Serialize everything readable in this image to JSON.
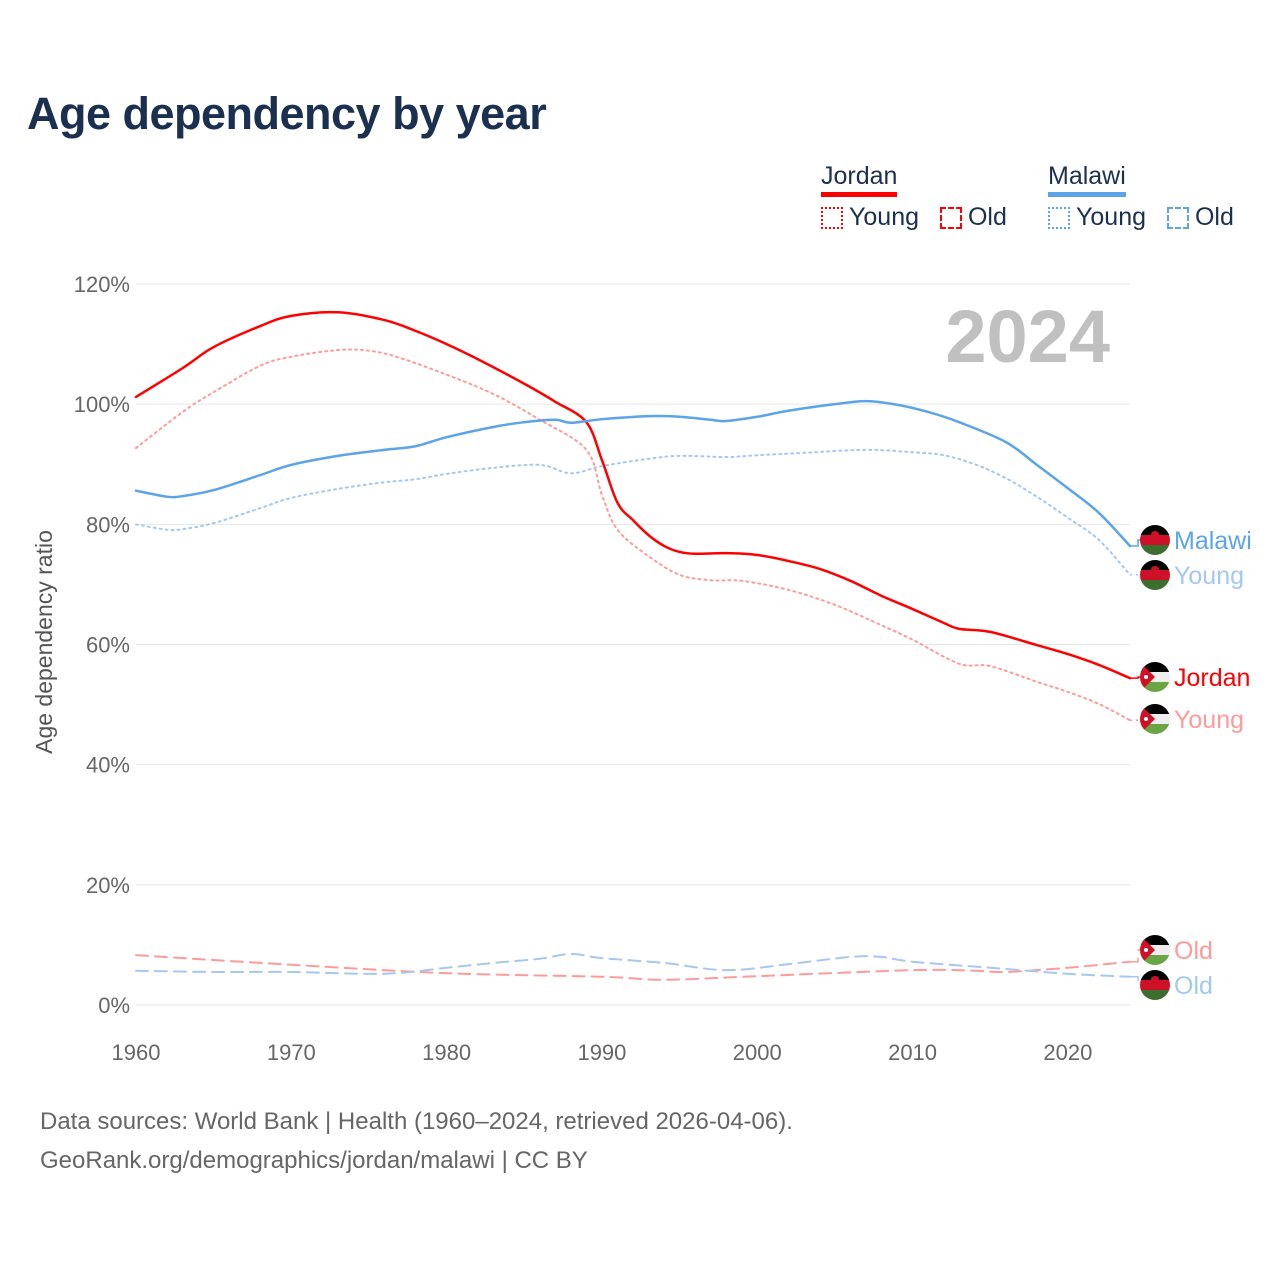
{
  "title": "Age dependency by year",
  "legend": {
    "groups": [
      {
        "name": "Jordan",
        "color": "#ff0000",
        "young_label": "Young",
        "old_label": "Old"
      },
      {
        "name": "Malawi",
        "color": "#5ba4ea",
        "young_label": "Young",
        "old_label": "Old"
      }
    ]
  },
  "footer": {
    "line1": "Data sources: World Bank | Health (1960–2024, retrieved 2026-04-06).",
    "line2": "GeoRank.org/demographics/jordan/malawi | CC BY"
  },
  "chart_data": {
    "type": "line",
    "title": "Age dependency by year",
    "year_label": "2024",
    "xlabel": "",
    "ylabel": "Age dependency ratio",
    "xlim": [
      1960,
      2024
    ],
    "ylim": [
      0,
      120
    ],
    "x_ticks": [
      "1960",
      "1970",
      "1980",
      "1990",
      "2000",
      "2010",
      "2020"
    ],
    "y_ticks": [
      "0%",
      "20%",
      "40%",
      "60%",
      "80%",
      "100%",
      "120%"
    ],
    "grid": true,
    "series": [
      {
        "name": "Jordan",
        "label": "Jordan",
        "country": "jordan",
        "style": "solid",
        "color": "#ff0000",
        "x": [
          1960,
          1963,
          1965,
          1968,
          1970,
          1973,
          1976,
          1978,
          1980,
          1982,
          1985,
          1987,
          1989,
          1990,
          1991,
          1992,
          1993,
          1994,
          1995,
          1996,
          1998,
          2000,
          2002,
          2004,
          2006,
          2008,
          2010,
          2012,
          2013,
          2015,
          2018,
          2020,
          2022,
          2024
        ],
        "values": [
          101.2,
          106,
          109.5,
          113,
          114.7,
          115.3,
          114,
          112.2,
          110,
          107.5,
          103.4,
          100.4,
          97,
          90.7,
          83.6,
          80.7,
          78.2,
          76.4,
          75.4,
          75.1,
          75.2,
          74.9,
          73.9,
          72.6,
          70.6,
          68.1,
          65.9,
          63.6,
          62.6,
          62.1,
          59.9,
          58.4,
          56.6,
          54.4
        ]
      },
      {
        "name": "Jordan Young",
        "label": "Young",
        "country": "jordan",
        "style": "dotted",
        "color": "#ff9a9a",
        "x": [
          1960,
          1963,
          1965,
          1968,
          1970,
          1973,
          1975,
          1977,
          1980,
          1983,
          1986,
          1989,
          1990,
          1991,
          1993,
          1995,
          1997,
          1999,
          2002,
          2005,
          2008,
          2010,
          2013,
          2015,
          2018,
          2020,
          2022,
          2024
        ],
        "values": [
          92.7,
          98.7,
          102,
          106.4,
          107.9,
          109,
          108.9,
          107.7,
          104.9,
          101.7,
          97.4,
          92.4,
          84.9,
          79.1,
          74.7,
          71.6,
          70.7,
          70.6,
          69.1,
          66.6,
          63.2,
          60.8,
          56.8,
          56.4,
          53.8,
          52.1,
          50.1,
          47.4
        ]
      },
      {
        "name": "Jordan Old",
        "label": "Old",
        "country": "jordan",
        "style": "dashed",
        "color": "#ff9a9a",
        "x": [
          1960,
          1970,
          1980,
          1990,
          1994,
          2000,
          2010,
          2014,
          2016,
          2020,
          2024
        ],
        "values": [
          8.3,
          6.7,
          5.3,
          4.7,
          4.2,
          4.8,
          5.8,
          5.7,
          5.5,
          6.2,
          7.2
        ]
      },
      {
        "name": "Malawi",
        "label": "Malawi",
        "country": "malawi",
        "style": "solid",
        "color": "#5ba4ea",
        "x": [
          1960,
          1962,
          1963,
          1965,
          1968,
          1970,
          1973,
          1976,
          1978,
          1980,
          1983,
          1985,
          1987,
          1988,
          1990,
          1993,
          1995,
          1997,
          1998,
          2000,
          2002,
          2005,
          2007,
          2009,
          2011,
          2013,
          2016,
          2018,
          2020,
          2022,
          2024
        ],
        "values": [
          85.6,
          84.6,
          84.7,
          85.7,
          88.2,
          89.9,
          91.4,
          92.4,
          93,
          94.5,
          96.2,
          97,
          97.4,
          96.9,
          97.5,
          98,
          97.9,
          97.4,
          97.2,
          97.9,
          98.9,
          100,
          100.5,
          99.9,
          98.7,
          97,
          93.7,
          89.9,
          86,
          81.9,
          76.4
        ]
      },
      {
        "name": "Malawi Young",
        "label": "Young",
        "country": "malawi",
        "style": "dotted",
        "color": "#a4c8f0",
        "x": [
          1960,
          1962,
          1963,
          1965,
          1968,
          1970,
          1973,
          1976,
          1978,
          1980,
          1983,
          1986,
          1988,
          1990,
          1993,
          1995,
          1998,
          2000,
          2003,
          2007,
          2010,
          2012,
          2014,
          2016,
          2018,
          2020,
          2022,
          2024
        ],
        "values": [
          80,
          79.1,
          79.2,
          80.2,
          82.7,
          84.4,
          85.9,
          87,
          87.5,
          88.4,
          89.4,
          89.9,
          88.5,
          89.7,
          90.9,
          91.4,
          91.2,
          91.5,
          91.9,
          92.4,
          92,
          91.5,
          90,
          87.7,
          84.6,
          81.1,
          77.4,
          71.6
        ]
      },
      {
        "name": "Malawi Old",
        "label": "Old",
        "country": "malawi",
        "style": "dashed",
        "color": "#a4c8f0",
        "x": [
          1960,
          1965,
          1970,
          1976,
          1980,
          1983,
          1986,
          1988,
          1990,
          1994,
          1998,
          2002,
          2006,
          2008,
          2010,
          2015,
          2020,
          2024
        ],
        "values": [
          5.7,
          5.5,
          5.5,
          5.2,
          6.2,
          7,
          7.7,
          8.5,
          7.8,
          7,
          5.8,
          6.8,
          8,
          8,
          7.2,
          6.2,
          5.2,
          4.7
        ]
      }
    ]
  }
}
